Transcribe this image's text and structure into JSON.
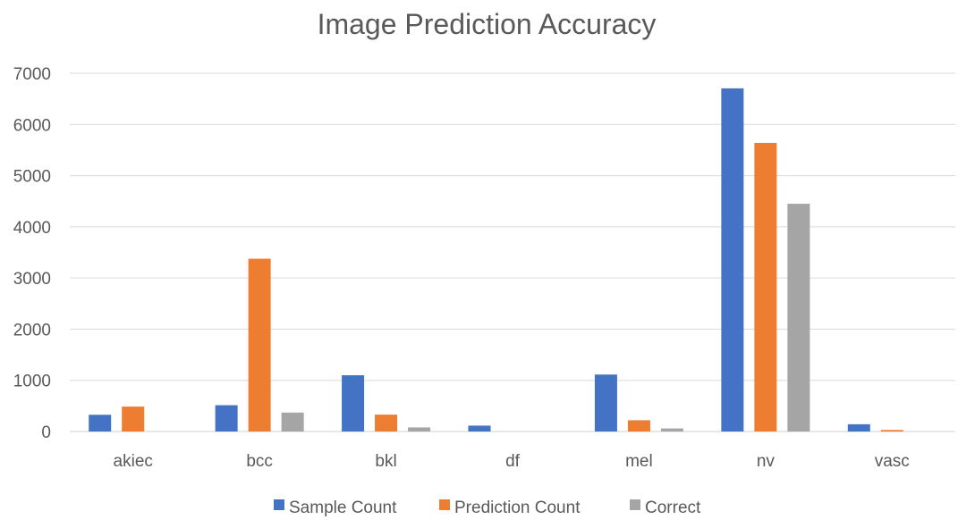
{
  "chart_data": {
    "type": "bar",
    "title": "Image Prediction Accuracy",
    "xlabel": "",
    "ylabel": "",
    "categories": [
      "akiec",
      "bcc",
      "bkl",
      "df",
      "mel",
      "nv",
      "vasc"
    ],
    "series": [
      {
        "name": "Sample Count",
        "color": "#4472c4",
        "values": [
          327,
          514,
          1099,
          115,
          1113,
          6705,
          142
        ]
      },
      {
        "name": "Prediction Count",
        "color": "#ed7d31",
        "values": [
          487,
          3376,
          330,
          0,
          220,
          5640,
          30
        ]
      },
      {
        "name": "Correct",
        "color": "#a5a5a5",
        "values": [
          0,
          370,
          80,
          0,
          60,
          4450,
          0
        ]
      }
    ],
    "ylim": [
      0,
      7000
    ],
    "yticks": [
      0,
      1000,
      2000,
      3000,
      4000,
      5000,
      6000,
      7000
    ],
    "grid": true,
    "legend_position": "bottom"
  }
}
